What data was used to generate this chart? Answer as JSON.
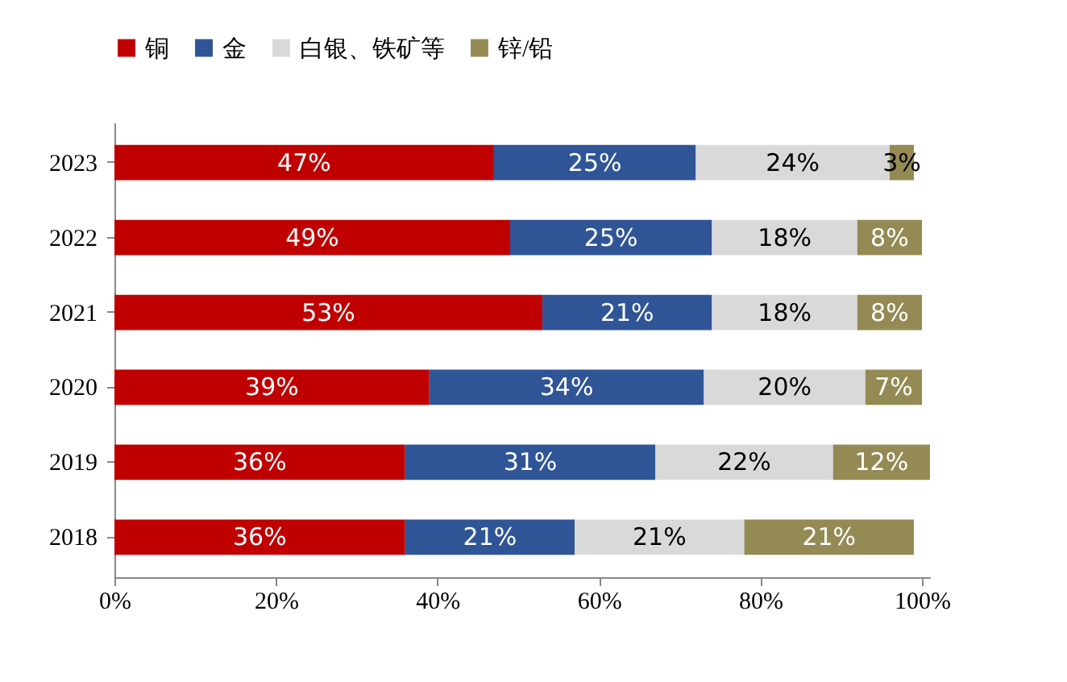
{
  "chart_data": {
    "type": "bar",
    "orientation": "horizontal",
    "stacked": true,
    "categories": [
      "2023",
      "2022",
      "2021",
      "2020",
      "2019",
      "2018"
    ],
    "series": [
      {
        "name": "铜",
        "color": "#c00000",
        "values": [
          47,
          49,
          53,
          39,
          36,
          36
        ],
        "value_labels": [
          "47%",
          "49%",
          "53%",
          "39%",
          "36%",
          "36%"
        ]
      },
      {
        "name": "金",
        "color": "#2f5597",
        "values": [
          25,
          25,
          21,
          34,
          31,
          21
        ],
        "value_labels": [
          "25%",
          "25%",
          "21%",
          "34%",
          "31%",
          "21%"
        ]
      },
      {
        "name": "白银、铁矿等",
        "color": "#d9d9d9",
        "values": [
          24,
          18,
          18,
          20,
          22,
          21
        ],
        "value_labels": [
          "24%",
          "18%",
          "18%",
          "20%",
          "22%",
          "21%"
        ]
      },
      {
        "name": "锌/铅",
        "color": "#948a54",
        "values": [
          3,
          8,
          8,
          7,
          12,
          21
        ],
        "value_labels": [
          "3%",
          "8%",
          "8%",
          "7%",
          "12%",
          "21%"
        ]
      }
    ],
    "xlim": [
      0,
      101
    ],
    "xticks": [
      {
        "value": 0,
        "label": "0%"
      },
      {
        "value": 20,
        "label": "20%"
      },
      {
        "value": 40,
        "label": "40%"
      },
      {
        "value": 60,
        "label": "60%"
      },
      {
        "value": 80,
        "label": "80%"
      },
      {
        "value": 100,
        "label": "100%"
      }
    ],
    "legend": "top",
    "grid": false
  }
}
